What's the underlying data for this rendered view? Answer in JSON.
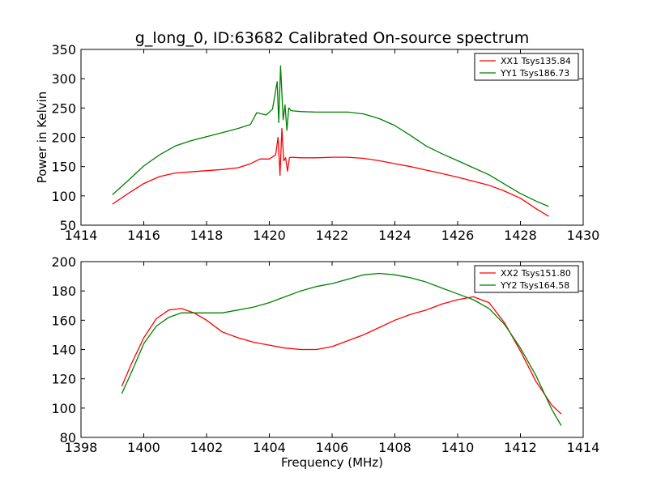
{
  "figure": {
    "title": "g_long_0, ID:63682 Calibrated On-source spectrum"
  },
  "colors": {
    "xx": "#ff0000",
    "yy": "#008000",
    "axes": "#000000",
    "background": "#ffffff"
  },
  "chart_data": [
    {
      "type": "line",
      "title": "g_long_0, ID:63682 Calibrated On-source spectrum",
      "xlabel": "",
      "ylabel": "Power in Kelvin",
      "xlim": [
        1414,
        1430
      ],
      "ylim": [
        50,
        350
      ],
      "xticks": [
        1414,
        1416,
        1418,
        1420,
        1422,
        1424,
        1426,
        1428,
        1430
      ],
      "yticks": [
        50,
        100,
        150,
        200,
        250,
        300,
        350
      ],
      "grid": false,
      "legend_position": "top-right",
      "series": [
        {
          "name": "XX1 Tsys135.84",
          "color_key": "xx",
          "x": [
            1415.0,
            1415.5,
            1416.0,
            1416.5,
            1417.0,
            1417.5,
            1418.0,
            1418.5,
            1419.0,
            1419.4,
            1419.7,
            1420.0,
            1420.2,
            1420.28,
            1420.34,
            1420.4,
            1420.46,
            1420.52,
            1420.58,
            1420.64,
            1420.7,
            1421.0,
            1421.5,
            1422.0,
            1422.5,
            1423.0,
            1423.5,
            1424.0,
            1424.5,
            1425.0,
            1425.5,
            1426.0,
            1426.5,
            1427.0,
            1427.5,
            1428.0,
            1428.5,
            1428.9
          ],
          "y": [
            86,
            104,
            121,
            133,
            139,
            141,
            143,
            145,
            148,
            155,
            163,
            163,
            170,
            200,
            135,
            215,
            160,
            165,
            142,
            165,
            166,
            165,
            165,
            166,
            166,
            164,
            160,
            155,
            150,
            144,
            138,
            132,
            125,
            118,
            108,
            96,
            78,
            65
          ]
        },
        {
          "name": "YY1 Tsys186.73",
          "color_key": "yy",
          "x": [
            1415.0,
            1415.5,
            1416.0,
            1416.5,
            1417.0,
            1417.5,
            1418.0,
            1418.5,
            1419.0,
            1419.4,
            1419.6,
            1419.9,
            1420.1,
            1420.25,
            1420.3,
            1420.36,
            1420.44,
            1420.5,
            1420.56,
            1420.62,
            1420.68,
            1420.75,
            1421.0,
            1421.5,
            1422.0,
            1422.5,
            1423.0,
            1423.5,
            1424.0,
            1424.5,
            1425.0,
            1425.5,
            1426.0,
            1426.5,
            1427.0,
            1427.5,
            1428.0,
            1428.5,
            1428.9
          ],
          "y": [
            102,
            126,
            151,
            170,
            185,
            194,
            201,
            208,
            215,
            222,
            242,
            238,
            248,
            295,
            225,
            322,
            230,
            255,
            212,
            250,
            246,
            245,
            244,
            243,
            243,
            243,
            240,
            232,
            220,
            203,
            185,
            172,
            160,
            148,
            136,
            120,
            104,
            91,
            82
          ]
        }
      ]
    },
    {
      "type": "line",
      "title": "",
      "xlabel": "Frequency (MHz)",
      "ylabel": "",
      "xlim": [
        1398,
        1414
      ],
      "ylim": [
        80,
        200
      ],
      "xticks": [
        1398,
        1400,
        1402,
        1404,
        1406,
        1408,
        1410,
        1412,
        1414
      ],
      "yticks": [
        80,
        100,
        120,
        140,
        160,
        180,
        200
      ],
      "grid": false,
      "legend_position": "top-right",
      "series": [
        {
          "name": "XX2 Tsys151.80",
          "color_key": "xx",
          "x": [
            1399.3,
            1399.6,
            1400.0,
            1400.4,
            1400.8,
            1401.2,
            1401.6,
            1402.0,
            1402.5,
            1403.0,
            1403.5,
            1404.0,
            1404.5,
            1405.0,
            1405.5,
            1406.0,
            1406.5,
            1407.0,
            1407.5,
            1408.0,
            1408.5,
            1409.0,
            1409.5,
            1410.0,
            1410.5,
            1411.0,
            1411.5,
            1412.0,
            1412.5,
            1413.0,
            1413.3
          ],
          "y": [
            115,
            130,
            148,
            161,
            167,
            168,
            165,
            160,
            152,
            148,
            145,
            143,
            141,
            140,
            140,
            142,
            146,
            150,
            155,
            160,
            164,
            167,
            171,
            174,
            176,
            172,
            158,
            139,
            118,
            102,
            96
          ]
        },
        {
          "name": "YY2 Tsys164.58",
          "color_key": "yy",
          "x": [
            1399.3,
            1399.6,
            1400.0,
            1400.4,
            1400.8,
            1401.2,
            1401.6,
            1402.0,
            1402.5,
            1403.0,
            1403.5,
            1404.0,
            1404.5,
            1405.0,
            1405.5,
            1406.0,
            1406.5,
            1407.0,
            1407.5,
            1408.0,
            1408.5,
            1409.0,
            1409.5,
            1410.0,
            1410.5,
            1411.0,
            1411.5,
            1412.0,
            1412.5,
            1413.0,
            1413.3
          ],
          "y": [
            110,
            124,
            144,
            156,
            162,
            165,
            165,
            165,
            165,
            167,
            169,
            172,
            176,
            180,
            183,
            185,
            188,
            191,
            192,
            191,
            189,
            186,
            182,
            178,
            174,
            168,
            157,
            141,
            122,
            99,
            88
          ]
        }
      ]
    }
  ]
}
